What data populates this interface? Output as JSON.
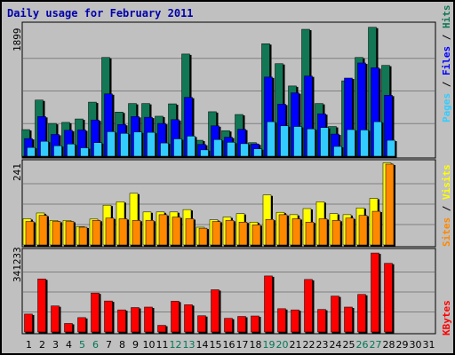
{
  "chart_data": {
    "type": "bar",
    "title": "Daily usage for February 2011",
    "categories": [
      "1",
      "2",
      "3",
      "4",
      "5",
      "6",
      "7",
      "8",
      "9",
      "10",
      "11",
      "12",
      "13",
      "14",
      "15",
      "16",
      "17",
      "18",
      "19",
      "20",
      "21",
      "22",
      "23",
      "24",
      "25",
      "26",
      "27",
      "28",
      "29",
      "30",
      "31"
    ],
    "weekend_days": [
      5,
      6,
      12,
      13,
      19,
      20,
      26,
      27
    ],
    "panels": [
      {
        "name": "hits_files_pages",
        "ymax_label": "1899",
        "ymax": 1899,
        "right_label_parts": [
          {
            "text": "Pages",
            "color": "#33ccff"
          },
          {
            "text": " / ",
            "color": "#000000"
          },
          {
            "text": "Files",
            "color": "#0000ff"
          },
          {
            "text": " / ",
            "color": "#000000"
          },
          {
            "text": "Hits",
            "color": "#117755"
          }
        ],
        "series": [
          {
            "name": "Hits",
            "color": "#117755",
            "values": [
              400,
              830,
              490,
              505,
              555,
              800,
              1450,
              655,
              780,
              780,
              595,
              775,
              1500,
              245,
              660,
              385,
              620,
              210,
              1650,
              1360,
              1035,
              1860,
              780,
              445,
              1110,
              1450,
              1890,
              1335,
              null,
              null,
              null
            ]
          },
          {
            "name": "Files",
            "color": "#0000ff",
            "values": [
              270,
              590,
              330,
              390,
              395,
              540,
              920,
              475,
              590,
              580,
              490,
              545,
              870,
              185,
              455,
              290,
              405,
              190,
              1165,
              770,
              935,
              1180,
              630,
              335,
              1150,
              1370,
              1300,
              900,
              null,
              null,
              null
            ]
          },
          {
            "name": "Pages",
            "color": "#33ccff",
            "values": [
              140,
              230,
              165,
              190,
              135,
              210,
              370,
              345,
              365,
              360,
              205,
              265,
              305,
              105,
              255,
              215,
              195,
              120,
              515,
              455,
              445,
              410,
              430,
              155,
              400,
              395,
              515,
              245,
              null,
              null,
              null
            ]
          }
        ]
      },
      {
        "name": "visits_sites",
        "ymax_label": "241",
        "ymax": 241,
        "right_label_parts": [
          {
            "text": "Sites",
            "color": "#ff8800"
          },
          {
            "text": " / ",
            "color": "#000000"
          },
          {
            "text": "Visits",
            "color": "#ffff00"
          }
        ],
        "series": [
          {
            "name": "Visits",
            "color": "#ffff00",
            "values": [
              80,
              97,
              75,
              75,
              57,
              79,
              120,
              130,
              155,
              100,
              100,
              100,
              107,
              55,
              77,
              85,
              95,
              70,
              150,
              99,
              92,
              110,
              130,
              95,
              92,
              112,
              140,
              245,
              null,
              null,
              null
            ]
          },
          {
            "name": "Sites",
            "color": "#ff8800",
            "values": [
              72,
              90,
              72,
              72,
              55,
              75,
              82,
              80,
              75,
              75,
              92,
              85,
              80,
              52,
              72,
              75,
              70,
              62,
              78,
              92,
              80,
              70,
              80,
              75,
              82,
              90,
              102,
              241,
              null,
              null,
              null
            ]
          }
        ]
      },
      {
        "name": "kbytes",
        "ymax_label": "341233",
        "ymax": 341233,
        "right_label_parts": [
          {
            "text": "KBytes",
            "color": "#ff0000"
          }
        ],
        "series": [
          {
            "name": "KBytes",
            "color": "#ff0000",
            "values": [
              80000,
              230000,
              115000,
              40000,
              65000,
              170000,
              136000,
              98000,
              108000,
              110000,
              32000,
              135000,
              120000,
              73000,
              184000,
              62000,
              70000,
              72000,
              243000,
              103000,
              98000,
              228000,
              100000,
              157000,
              110000,
              164000,
              341000,
              297000,
              null,
              null,
              null
            ]
          }
        ]
      }
    ]
  },
  "style": {
    "background": "#c0c0c0",
    "plot_background": "#c0c0c0",
    "gridline": "#808080",
    "title_color": "#0000aa",
    "weekday_label": "#000000",
    "weekend_label": "#007755"
  }
}
